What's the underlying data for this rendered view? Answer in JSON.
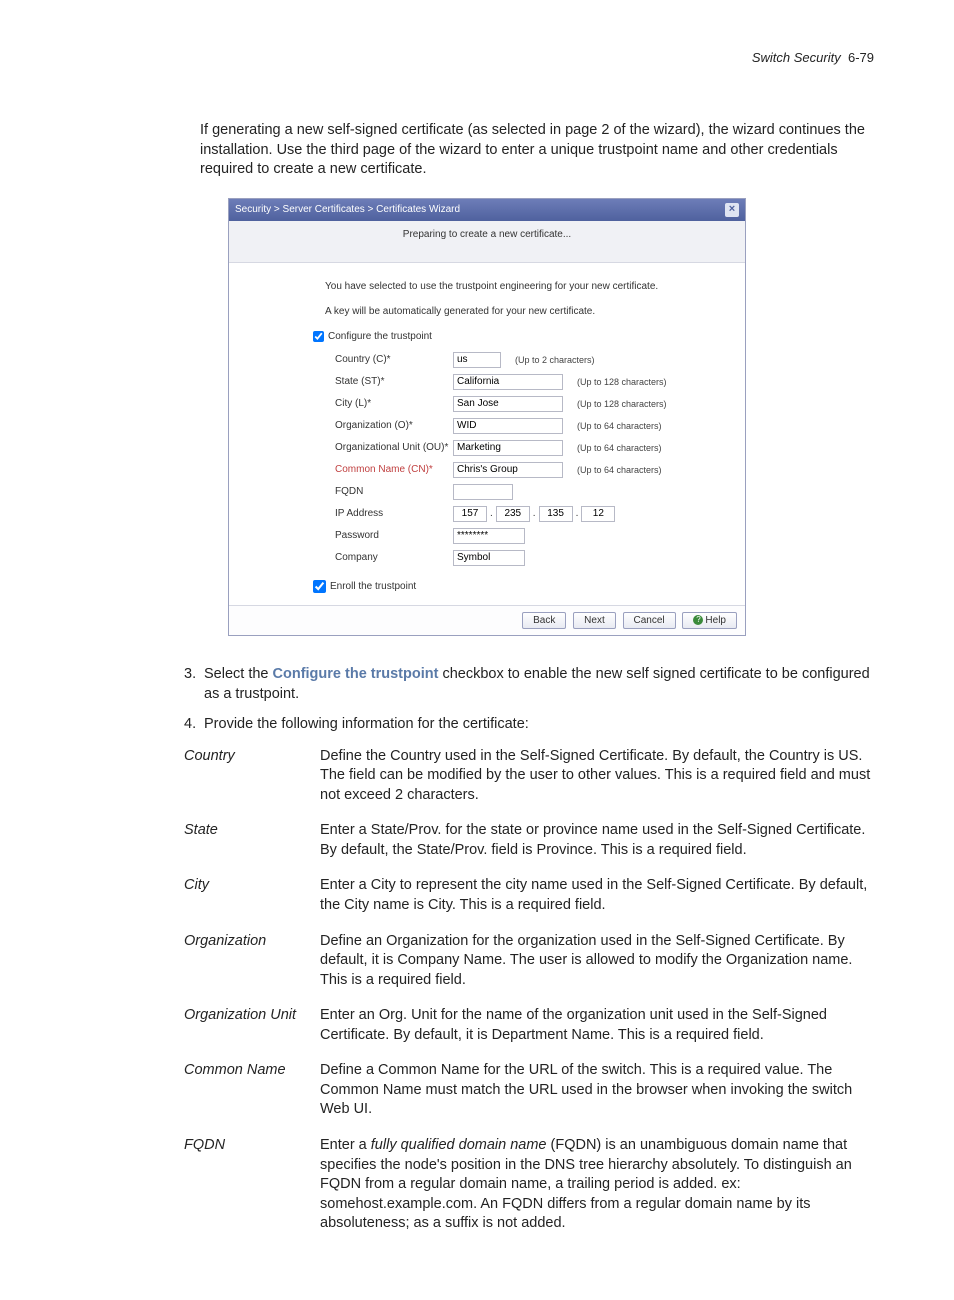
{
  "header": {
    "section": "Switch Security",
    "page": "6-79"
  },
  "intro": "If generating a new self-signed certificate (as selected in page 2 of the wizard), the wizard continues the installation. Use the third page of the wizard to enter a unique trustpoint name and other credentials required to create a new certificate.",
  "wizard": {
    "title": "Security > Server Certificates > Certificates Wizard",
    "subtitle": "Preparing to create a new certificate...",
    "msg1": "You have selected to use the trustpoint engineering for your new certificate.",
    "msg2": "A key will be automatically generated for your new certificate.",
    "configure_label": "Configure the trustpoint",
    "fields": {
      "country_label": "Country (C)*",
      "country_val": "us",
      "country_hint": "(Up to 2 characters)",
      "state_label": "State (ST)*",
      "state_val": "California",
      "state_hint": "(Up to 128 characters)",
      "city_label": "City (L)*",
      "city_val": "San Jose",
      "city_hint": "(Up to 128 characters)",
      "org_label": "Organization (O)*",
      "org_val": "WID",
      "org_hint": "(Up to 64 characters)",
      "ou_label": "Organizational Unit (OU)*",
      "ou_val": "Marketing",
      "ou_hint": "(Up to 64 characters)",
      "cn_label": "Common Name (CN)*",
      "cn_val": "Chris's Group",
      "cn_hint": "(Up to 64 characters)",
      "fqdn_label": "FQDN",
      "fqdn_val": "",
      "ip_label": "IP Address",
      "ip1": "157",
      "ip2": "235",
      "ip3": "135",
      "ip4": "12",
      "pw_label": "Password",
      "pw_val": "********",
      "comp_label": "Company",
      "comp_val": "Symbol"
    },
    "enroll_label": "Enroll the trustpoint",
    "buttons": {
      "back": "Back",
      "next": "Next",
      "cancel": "Cancel",
      "help": "Help"
    }
  },
  "list": {
    "item3_pre": "Select the ",
    "item3_bold": "Configure the trustpoint",
    "item3_post": " checkbox to enable the new self signed certificate to be configured as a trustpoint.",
    "item4": "Provide the following information for the certificate:"
  },
  "defs": [
    {
      "term": "Country",
      "desc": "Define the Country used in the Self-Signed Certificate. By default, the Country is US. The field can be modified by the user to other values. This is a required field and must not exceed 2 characters."
    },
    {
      "term": "State",
      "desc": "Enter a State/Prov. for the state or province name used in the Self-Signed Certificate. By default, the State/Prov. field is Province. This is a required field."
    },
    {
      "term": "City",
      "desc": "Enter a City to represent the city name used in the Self-Signed Certificate. By default, the City name is City. This is a required field."
    },
    {
      "term": "Organization",
      "desc": "Define an Organization for the organization used in the Self-Signed Certificate. By default, it is Company Name. The user is allowed to modify the Organization name. This is a required field."
    },
    {
      "term": "Organization Unit",
      "desc": "Enter an Org. Unit for the name of the organization unit used in the Self-Signed Certificate. By default, it is Department Name. This is a required field."
    },
    {
      "term": "Common Name",
      "desc": "Define a Common Name for the URL of the switch. This is a required value. The Common Name must match the URL used in the browser when invoking the switch Web UI."
    },
    {
      "term": "FQDN",
      "desc_pre": "Enter a ",
      "desc_ital": "fully qualified domain name",
      "desc_post": " (FQDN) is an unambiguous domain name that specifies the node's position in the DNS tree hierarchy absolutely. To distinguish an FQDN from a regular domain name, a trailing period is added. ex: somehost.example.com. An FQDN differs from a regular domain name by its absoluteness; as a suffix is not added."
    }
  ]
}
